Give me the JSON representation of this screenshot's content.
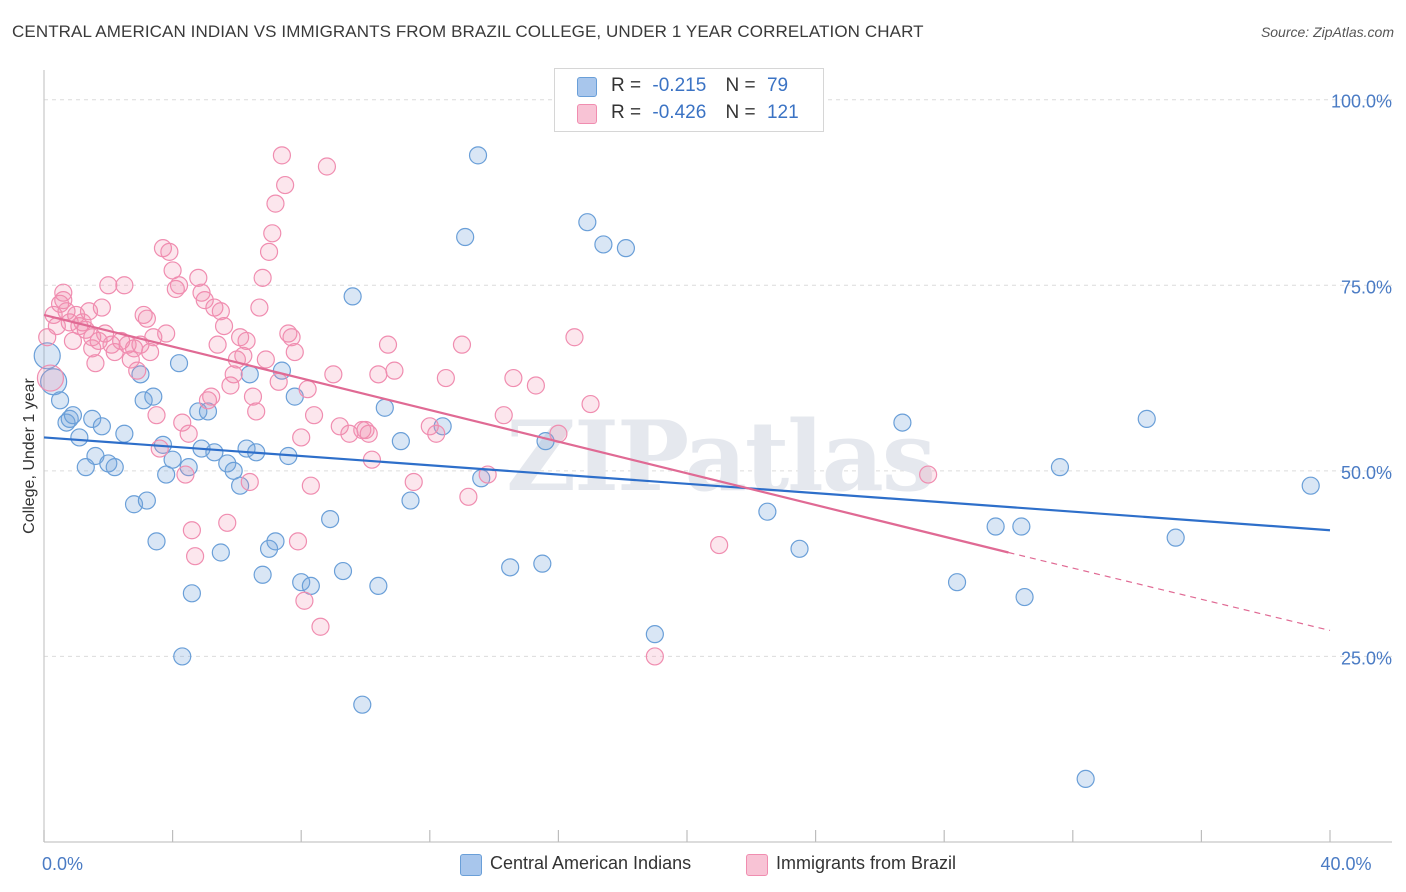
{
  "chart_data": {
    "type": "scatter",
    "title": "CENTRAL AMERICAN INDIAN VS IMMIGRANTS FROM BRAZIL COLLEGE, UNDER 1 YEAR CORRELATION CHART",
    "source": "Source: ZipAtlas.com",
    "watermark": "ZIPatlas",
    "xlabel": "",
    "ylabel": "College, Under 1 year",
    "xlim": [
      0,
      40
    ],
    "ylim": [
      0,
      104
    ],
    "x_tick_labels": [
      {
        "value": 0,
        "label": "0.0%"
      },
      {
        "value": 40,
        "label": "40.0%"
      }
    ],
    "y_tick_labels": [
      {
        "value": 25,
        "label": "25.0%"
      },
      {
        "value": 50,
        "label": "50.0%"
      },
      {
        "value": 75,
        "label": "75.0%"
      },
      {
        "value": 100,
        "label": "100.0%"
      }
    ],
    "legend_stats": [
      {
        "r_label": "R =",
        "r_value": "-0.215",
        "n_label": "N =",
        "n_value": "79"
      },
      {
        "r_label": "R =",
        "r_value": "-0.426",
        "n_label": "N =",
        "n_value": "121"
      }
    ],
    "series": [
      {
        "name": "Central American Indians",
        "color": "#6a9fd8",
        "fill": "rgba(120,165,220,0.28)",
        "line_color": "#2e6fca",
        "trend": {
          "x0": 0,
          "y0": 54.5,
          "x1": 40,
          "y1": 42
        },
        "points": [
          [
            0.1,
            65.5
          ],
          [
            0.3,
            62
          ],
          [
            0.5,
            59.5
          ],
          [
            0.7,
            56.5
          ],
          [
            0.8,
            57
          ],
          [
            0.9,
            57.5
          ],
          [
            1.1,
            54.5
          ],
          [
            1.3,
            50.5
          ],
          [
            1.5,
            57
          ],
          [
            1.6,
            52
          ],
          [
            1.8,
            56
          ],
          [
            2.0,
            51
          ],
          [
            2.2,
            50.5
          ],
          [
            2.5,
            55
          ],
          [
            2.8,
            45.5
          ],
          [
            3.0,
            63
          ],
          [
            3.1,
            59.5
          ],
          [
            3.2,
            46
          ],
          [
            3.4,
            60
          ],
          [
            3.5,
            40.5
          ],
          [
            3.7,
            53.5
          ],
          [
            3.8,
            49.5
          ],
          [
            4.0,
            51.5
          ],
          [
            4.2,
            64.5
          ],
          [
            4.3,
            25
          ],
          [
            4.5,
            50.5
          ],
          [
            4.6,
            33.5
          ],
          [
            4.8,
            58
          ],
          [
            4.9,
            53
          ],
          [
            5.1,
            58
          ],
          [
            5.3,
            52.5
          ],
          [
            5.5,
            39
          ],
          [
            5.7,
            51
          ],
          [
            5.9,
            50
          ],
          [
            6.1,
            48
          ],
          [
            6.3,
            53
          ],
          [
            6.4,
            63
          ],
          [
            6.6,
            52.5
          ],
          [
            6.8,
            36
          ],
          [
            7.0,
            39.5
          ],
          [
            7.2,
            40.5
          ],
          [
            7.4,
            63.5
          ],
          [
            7.6,
            52
          ],
          [
            7.8,
            60
          ],
          [
            8.0,
            35
          ],
          [
            8.3,
            34.5
          ],
          [
            8.9,
            43.5
          ],
          [
            9.3,
            36.5
          ],
          [
            9.6,
            73.5
          ],
          [
            9.9,
            18.5
          ],
          [
            10.4,
            34.5
          ],
          [
            10.6,
            58.5
          ],
          [
            11.1,
            54
          ],
          [
            11.4,
            46
          ],
          [
            12.4,
            56
          ],
          [
            13.1,
            81.5
          ],
          [
            13.5,
            92.5
          ],
          [
            13.6,
            49
          ],
          [
            14.5,
            37
          ],
          [
            15.5,
            37.5
          ],
          [
            15.6,
            54
          ],
          [
            16.9,
            83.5
          ],
          [
            17.4,
            80.5
          ],
          [
            18.1,
            80
          ],
          [
            19.0,
            28
          ],
          [
            22.5,
            44.5
          ],
          [
            23.5,
            39.5
          ],
          [
            26.7,
            56.5
          ],
          [
            28.4,
            35
          ],
          [
            29.6,
            42.5
          ],
          [
            30.4,
            42.5
          ],
          [
            30.5,
            33
          ],
          [
            31.6,
            50.5
          ],
          [
            32.4,
            8.5
          ],
          [
            34.3,
            57
          ],
          [
            35.2,
            41
          ],
          [
            39.4,
            48
          ]
        ]
      },
      {
        "name": "Immigrants from Brazil",
        "color": "#f08db0",
        "fill": "rgba(240,140,175,0.22)",
        "line_color": "#e06a94",
        "trend": {
          "x0": 0,
          "y0": 71,
          "x1": 30,
          "y1": 39,
          "dash_to_x": 40,
          "dash_to_y": 28.5
        },
        "points": [
          [
            0.1,
            68
          ],
          [
            0.2,
            62.5
          ],
          [
            0.3,
            71
          ],
          [
            0.4,
            69.5
          ],
          [
            0.5,
            72.5
          ],
          [
            0.6,
            73
          ],
          [
            0.6,
            74
          ],
          [
            0.7,
            71.5
          ],
          [
            0.8,
            70
          ],
          [
            0.9,
            67.5
          ],
          [
            1.0,
            71
          ],
          [
            1.1,
            69.5
          ],
          [
            1.2,
            70
          ],
          [
            1.3,
            69
          ],
          [
            1.4,
            71.5
          ],
          [
            1.5,
            66.5
          ],
          [
            1.5,
            68
          ],
          [
            1.6,
            64.5
          ],
          [
            1.7,
            67.5
          ],
          [
            1.8,
            72
          ],
          [
            1.9,
            68.5
          ],
          [
            2.0,
            75
          ],
          [
            2.1,
            67
          ],
          [
            2.2,
            66
          ],
          [
            2.4,
            67.5
          ],
          [
            2.5,
            75
          ],
          [
            2.6,
            67
          ],
          [
            2.7,
            65
          ],
          [
            2.8,
            66.5
          ],
          [
            2.9,
            63.5
          ],
          [
            3.0,
            67
          ],
          [
            3.1,
            71
          ],
          [
            3.2,
            70.5
          ],
          [
            3.3,
            66
          ],
          [
            3.4,
            68
          ],
          [
            3.5,
            57.5
          ],
          [
            3.6,
            53
          ],
          [
            3.7,
            80
          ],
          [
            3.8,
            68.5
          ],
          [
            3.9,
            79.5
          ],
          [
            4.0,
            77
          ],
          [
            4.1,
            74.5
          ],
          [
            4.2,
            75
          ],
          [
            4.3,
            56.5
          ],
          [
            4.4,
            49.5
          ],
          [
            4.5,
            55
          ],
          [
            4.6,
            42
          ],
          [
            4.7,
            38.5
          ],
          [
            4.8,
            76
          ],
          [
            4.9,
            74
          ],
          [
            5.0,
            73
          ],
          [
            5.1,
            59.5
          ],
          [
            5.2,
            60
          ],
          [
            5.3,
            72
          ],
          [
            5.4,
            67
          ],
          [
            5.5,
            71.5
          ],
          [
            5.6,
            69.5
          ],
          [
            5.7,
            43
          ],
          [
            5.8,
            61.5
          ],
          [
            5.9,
            63
          ],
          [
            6.0,
            65
          ],
          [
            6.1,
            68
          ],
          [
            6.2,
            65.5
          ],
          [
            6.3,
            67.5
          ],
          [
            6.4,
            48.5
          ],
          [
            6.5,
            60
          ],
          [
            6.6,
            58
          ],
          [
            6.7,
            72
          ],
          [
            6.8,
            76
          ],
          [
            6.9,
            65
          ],
          [
            7.0,
            79.5
          ],
          [
            7.1,
            82
          ],
          [
            7.2,
            86
          ],
          [
            7.3,
            62
          ],
          [
            7.4,
            92.5
          ],
          [
            7.5,
            88.5
          ],
          [
            7.6,
            68.5
          ],
          [
            7.7,
            68
          ],
          [
            7.8,
            66
          ],
          [
            7.9,
            40.5
          ],
          [
            8.0,
            54.5
          ],
          [
            8.1,
            32.5
          ],
          [
            8.2,
            61
          ],
          [
            8.3,
            48
          ],
          [
            8.4,
            57.5
          ],
          [
            8.6,
            29
          ],
          [
            8.8,
            91
          ],
          [
            9.0,
            63
          ],
          [
            9.2,
            56
          ],
          [
            9.5,
            55
          ],
          [
            9.9,
            55.5
          ],
          [
            10.0,
            55.5
          ],
          [
            10.1,
            55
          ],
          [
            10.2,
            51.5
          ],
          [
            10.4,
            63
          ],
          [
            10.7,
            67
          ],
          [
            10.9,
            63.5
          ],
          [
            11.5,
            48.5
          ],
          [
            12.0,
            56
          ],
          [
            12.2,
            55
          ],
          [
            12.5,
            62.5
          ],
          [
            13.0,
            67
          ],
          [
            13.2,
            46.5
          ],
          [
            13.8,
            49.5
          ],
          [
            14.3,
            57.5
          ],
          [
            14.6,
            62.5
          ],
          [
            15.3,
            61.5
          ],
          [
            16.0,
            55
          ],
          [
            16.5,
            68
          ],
          [
            17.0,
            59
          ],
          [
            19.0,
            25
          ],
          [
            21.0,
            40
          ],
          [
            27.5,
            49.5
          ]
        ]
      }
    ]
  },
  "legend": {
    "items": [
      {
        "label": "Central American Indians",
        "color": "#a8c6ec",
        "border": "#6a9fd8"
      },
      {
        "label": "Immigrants from Brazil",
        "color": "#f8c3d5",
        "border": "#f08db0"
      }
    ]
  }
}
